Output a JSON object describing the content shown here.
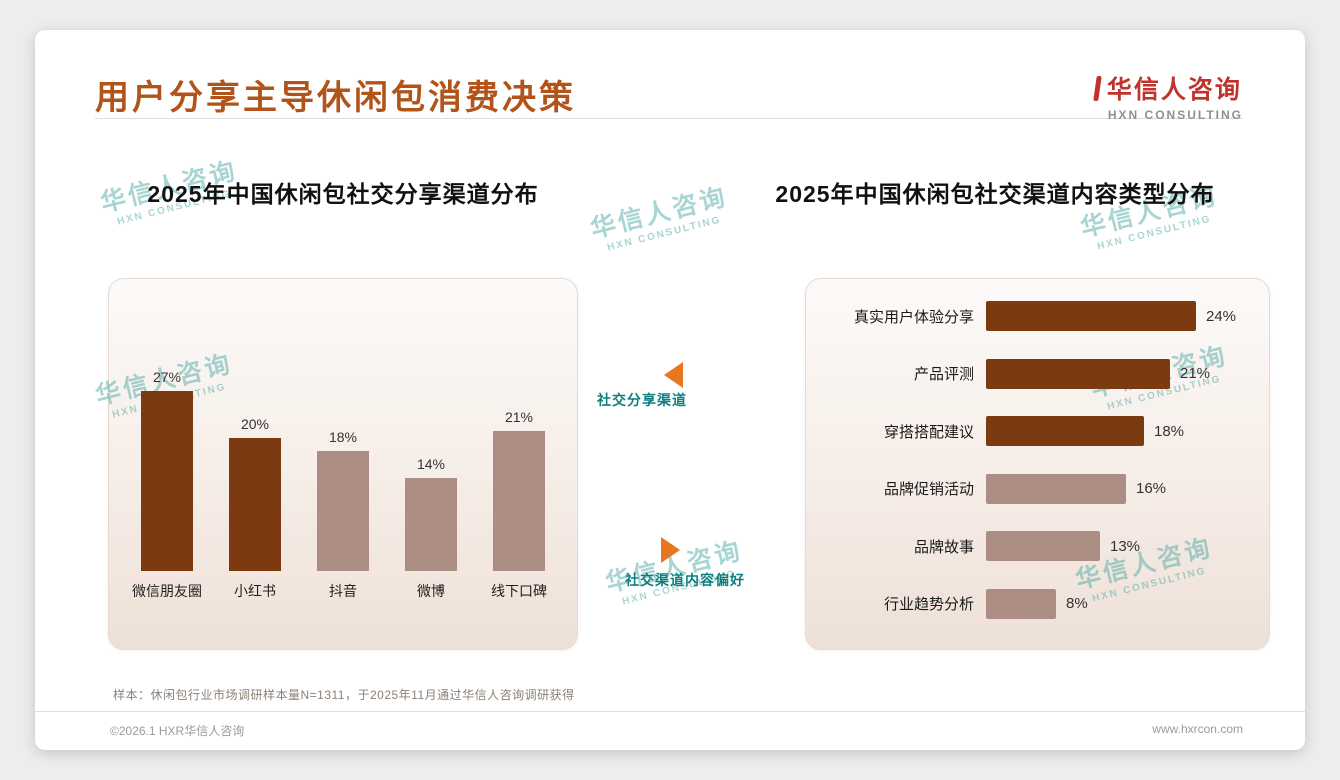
{
  "page": {
    "title": "用户分享主导休闲包消费决策",
    "logo": {
      "name": "华信人咨询",
      "sub": "HXN CONSULTING"
    },
    "footnote": "样本：休闲包行业市场调研样本量N=1311，于2025年11月通过华信人咨询调研获得",
    "footer_left": "©2026.1 HXR华信人咨询",
    "footer_right": "www.hxrcon.com"
  },
  "watermark": {
    "text": "华信人咨询",
    "sub": "HXN CONSULTING"
  },
  "middle": {
    "top_label": "社交分享渠道",
    "bottom_label": "社交渠道内容偏好"
  },
  "colors": {
    "title": "#B2541A",
    "logo_red": "#C0332B",
    "dark_bar": "#7C3A10",
    "light_bar": "#AC8D83",
    "accent_orange": "#E8761E",
    "teal_label": "#0E7F7F",
    "watermark": "#4BA8A4"
  },
  "chart_data": [
    {
      "type": "bar",
      "title": "2025年中国休闲包社交分享渠道分布",
      "categories": [
        "微信朋友圈",
        "小红书",
        "抖音",
        "微博",
        "线下口碑"
      ],
      "values": [
        27,
        20,
        18,
        14,
        21
      ],
      "unit": "%",
      "colors": [
        "#7C3A10",
        "#7C3A10",
        "#AC8D83",
        "#AC8D83",
        "#AC8D83"
      ],
      "ylim": [
        0,
        30
      ],
      "grid": false,
      "legend": false
    },
    {
      "type": "bar-horizontal",
      "title": "2025年中国休闲包社交渠道内容类型分布",
      "categories": [
        "真实用户体验分享",
        "产品评测",
        "穿搭搭配建议",
        "品牌促销活动",
        "品牌故事",
        "行业趋势分析"
      ],
      "values": [
        24,
        21,
        18,
        16,
        13,
        8
      ],
      "unit": "%",
      "colors": [
        "#7C3A10",
        "#7C3A10",
        "#7C3A10",
        "#AC8D83",
        "#AC8D83",
        "#AC8D83"
      ],
      "xlim": [
        0,
        28
      ],
      "grid": false,
      "legend": false
    }
  ]
}
